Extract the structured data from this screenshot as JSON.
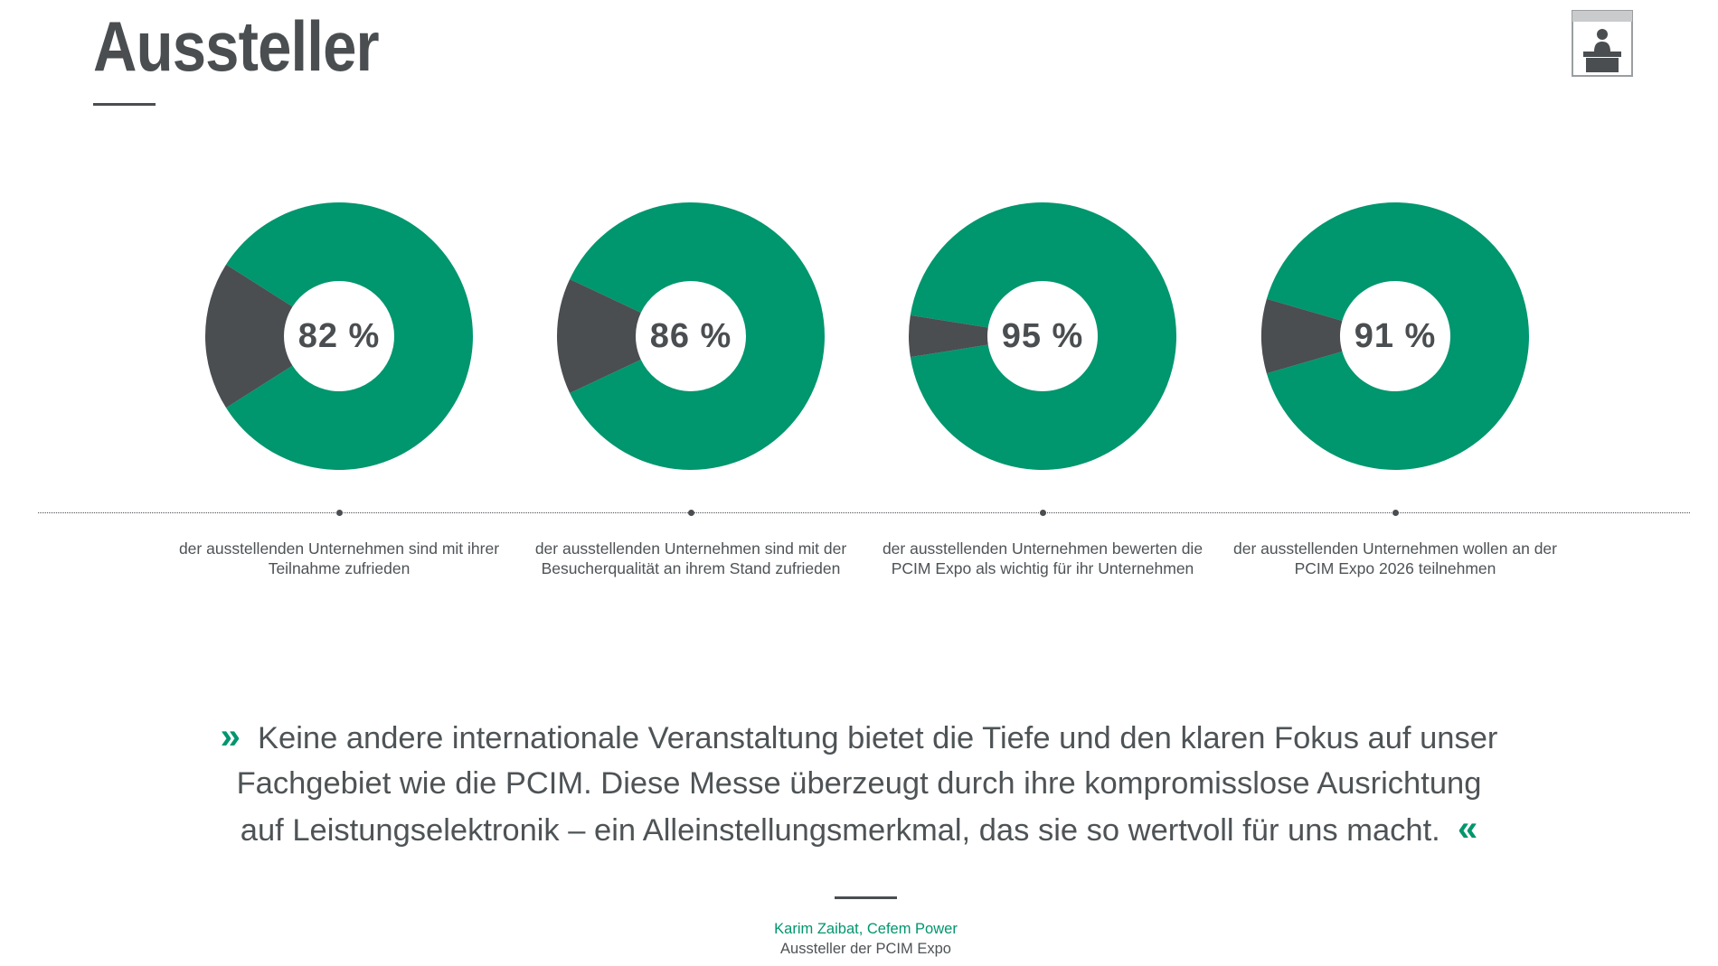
{
  "title": "Aussteller",
  "colors": {
    "accent": "#00966e",
    "dark": "#4a4e51",
    "text": "#4e5356"
  },
  "icon": "exhibitor-booth-icon",
  "chart_data": [
    {
      "type": "pie",
      "value_label": "82 %",
      "values": [
        82,
        18
      ],
      "description": "der ausstellenden Unternehmen sind mit ihrer Teilnahme zufrieden"
    },
    {
      "type": "pie",
      "value_label": "86 %",
      "values": [
        86,
        14
      ],
      "description": "der ausstellenden Unternehmen sind mit der Besucherqualität an ihrem Stand zufrieden"
    },
    {
      "type": "pie",
      "value_label": "95 %",
      "values": [
        95,
        5
      ],
      "description": "der ausstellenden Unternehmen bewerten die PCIM Expo als wichtig für ihr Unternehmen"
    },
    {
      "type": "pie",
      "value_label": "91 %",
      "values": [
        91,
        9
      ],
      "description": "der ausstellenden Unternehmen wollen an der PCIM Expo 2026 teilnehmen"
    }
  ],
  "quote": {
    "open_mark": "»",
    "text": "Keine andere internationale Veranstaltung bietet die Tiefe und den klaren Fokus auf unser Fachgebiet wie die PCIM. Diese Messe überzeugt durch ihre kompromisslose Ausrichtung auf Leistungselektronik – ein Alleinstellungsmerkmal, das sie so wertvoll für uns macht.",
    "close_mark": "«",
    "author": "Karim Zaibat, Cefem Power",
    "role": "Aussteller der PCIM Expo"
  }
}
